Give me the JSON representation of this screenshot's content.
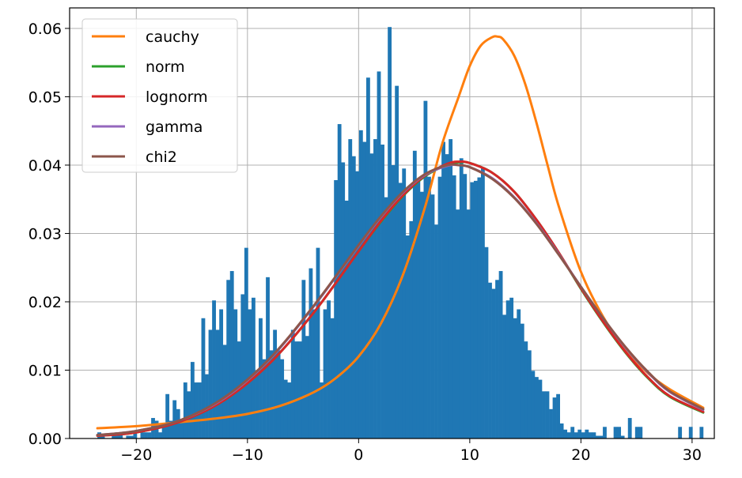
{
  "chart_data": {
    "type": "bar",
    "grid": true,
    "legend_placement": "top-left",
    "xlim": [
      -26,
      32
    ],
    "ylim": [
      0,
      0.063
    ],
    "x_ticks": [
      -20,
      -10,
      0,
      10,
      20,
      30
    ],
    "y_ticks": [
      0.0,
      0.01,
      0.02,
      0.03,
      0.04,
      0.05,
      0.06
    ],
    "y_tick_labels": [
      "0.00",
      "0.01",
      "0.02",
      "0.03",
      "0.04",
      "0.05",
      "0.06"
    ],
    "histogram": {
      "color": "#1f77b4",
      "bin_start": -23.5,
      "bin_end": 31.0,
      "values": [
        0.0009,
        0.0004,
        0.0,
        0.0,
        0.0004,
        0.0009,
        0.0009,
        0.0,
        0.0004,
        0.0004,
        0.0009,
        0.0,
        0.0009,
        0.0009,
        0.0009,
        0.003,
        0.0026,
        0.0009,
        0.0022,
        0.0065,
        0.0026,
        0.0056,
        0.0043,
        0.0026,
        0.0082,
        0.0069,
        0.0112,
        0.0082,
        0.0082,
        0.0176,
        0.0094,
        0.0159,
        0.0202,
        0.0159,
        0.0189,
        0.0137,
        0.0232,
        0.0245,
        0.0189,
        0.0142,
        0.0211,
        0.0279,
        0.0189,
        0.0206,
        0.0099,
        0.0176,
        0.0116,
        0.0236,
        0.0129,
        0.0159,
        0.0129,
        0.0116,
        0.0086,
        0.0082,
        0.0159,
        0.0142,
        0.0142,
        0.0232,
        0.015,
        0.0249,
        0.0189,
        0.0279,
        0.0082,
        0.0189,
        0.0202,
        0.0176,
        0.0378,
        0.046,
        0.0404,
        0.0348,
        0.0438,
        0.0413,
        0.0391,
        0.0451,
        0.0434,
        0.0528,
        0.0417,
        0.0438,
        0.0537,
        0.043,
        0.0353,
        0.0602,
        0.04,
        0.0516,
        0.0374,
        0.0395,
        0.0297,
        0.0318,
        0.0421,
        0.0377,
        0.0361,
        0.0494,
        0.0383,
        0.0357,
        0.0313,
        0.0383,
        0.0434,
        0.0416,
        0.0438,
        0.0385,
        0.0335,
        0.041,
        0.0387,
        0.0335,
        0.0375,
        0.0377,
        0.0382,
        0.0397,
        0.028,
        0.0228,
        0.0219,
        0.0232,
        0.0245,
        0.0181,
        0.0202,
        0.0206,
        0.0176,
        0.0189,
        0.0168,
        0.0142,
        0.0129,
        0.0099,
        0.009,
        0.0086,
        0.0069,
        0.0069,
        0.0043,
        0.006,
        0.0065,
        0.0022,
        0.0013,
        0.0009,
        0.0017,
        0.0009,
        0.0013,
        0.0009,
        0.0013,
        0.0009,
        0.0009,
        0.0004,
        0.0004,
        0.0017,
        0.0,
        0.0,
        0.0017,
        0.0017,
        0.0004,
        0.0,
        0.003,
        0.0,
        0.0017,
        0.0017,
        0.0,
        0.0,
        0.0,
        0.0,
        0.0,
        0.0,
        0.0,
        0.0,
        0.0,
        0.0,
        0.0017,
        0.0,
        0.0,
        0.0017,
        0.0,
        0.0,
        0.0017
      ]
    },
    "series": [
      {
        "name": "cauchy",
        "color": "#ff7f0e",
        "x": [
          -23.5,
          -20,
          -16,
          -13,
          -10,
          -7,
          -4,
          -2,
          0,
          2,
          4,
          6,
          7.5,
          9,
          10,
          11,
          12,
          12.5,
          13,
          14,
          15,
          16,
          17,
          18,
          20,
          22,
          24,
          26,
          28,
          31
        ],
        "y": [
          0.0015,
          0.0018,
          0.0024,
          0.0029,
          0.0036,
          0.0048,
          0.0068,
          0.0089,
          0.012,
          0.0168,
          0.024,
          0.034,
          0.043,
          0.05,
          0.0545,
          0.0575,
          0.0587,
          0.0588,
          0.0584,
          0.056,
          0.0518,
          0.0462,
          0.04,
          0.034,
          0.0244,
          0.0178,
          0.013,
          0.0096,
          0.0072,
          0.0045
        ]
      },
      {
        "name": "norm",
        "color": "#2ca02c",
        "x": [
          -23.5,
          -20,
          -16,
          -12,
          -8,
          -4,
          0,
          2,
          4,
          6,
          8,
          9,
          10,
          12,
          14,
          16,
          18,
          20,
          22,
          24,
          26,
          28,
          31
        ],
        "y": [
          0.0004,
          0.0009,
          0.0025,
          0.0057,
          0.011,
          0.0185,
          0.0274,
          0.0317,
          0.0355,
          0.0384,
          0.0401,
          0.0404,
          0.0403,
          0.0389,
          0.0361,
          0.032,
          0.0272,
          0.0219,
          0.017,
          0.0126,
          0.0089,
          0.0061,
          0.0038
        ]
      },
      {
        "name": "lognorm",
        "color": "#d62728",
        "x": [
          -23.5,
          -20,
          -16,
          -12,
          -8,
          -4,
          0,
          2,
          4,
          6,
          8,
          9,
          10,
          12,
          14,
          16,
          18,
          20,
          22,
          24,
          26,
          28,
          31
        ],
        "y": [
          0.0004,
          0.0009,
          0.0025,
          0.0057,
          0.011,
          0.0185,
          0.0274,
          0.0318,
          0.0356,
          0.0385,
          0.0402,
          0.0405,
          0.0403,
          0.0389,
          0.0361,
          0.032,
          0.0272,
          0.022,
          0.0171,
          0.0127,
          0.009,
          0.0062,
          0.0039
        ]
      },
      {
        "name": "gamma",
        "color": "#9467bd",
        "x": [
          -23.5,
          -20,
          -16,
          -12,
          -8,
          -4,
          0,
          2,
          4,
          6,
          8,
          9,
          10,
          12,
          14,
          16,
          18,
          20,
          22,
          24,
          26,
          28,
          31
        ],
        "y": [
          0.0005,
          0.0011,
          0.0027,
          0.006,
          0.0116,
          0.0194,
          0.0282,
          0.0324,
          0.036,
          0.0386,
          0.0399,
          0.04,
          0.0397,
          0.0381,
          0.0353,
          0.0315,
          0.027,
          0.0222,
          0.0176,
          0.0133,
          0.0097,
          0.0068,
          0.0042
        ]
      },
      {
        "name": "chi2",
        "color": "#8c564b",
        "x": [
          -23.5,
          -20,
          -16,
          -12,
          -8,
          -4,
          0,
          2,
          4,
          6,
          8,
          9,
          10,
          12,
          14,
          16,
          18,
          20,
          22,
          24,
          26,
          28,
          31
        ],
        "y": [
          0.0005,
          0.0011,
          0.0027,
          0.0061,
          0.0117,
          0.0195,
          0.0283,
          0.0325,
          0.0361,
          0.0387,
          0.04,
          0.04,
          0.0397,
          0.038,
          0.0352,
          0.0314,
          0.0269,
          0.0222,
          0.0176,
          0.0134,
          0.0098,
          0.0069,
          0.0043
        ]
      }
    ]
  }
}
